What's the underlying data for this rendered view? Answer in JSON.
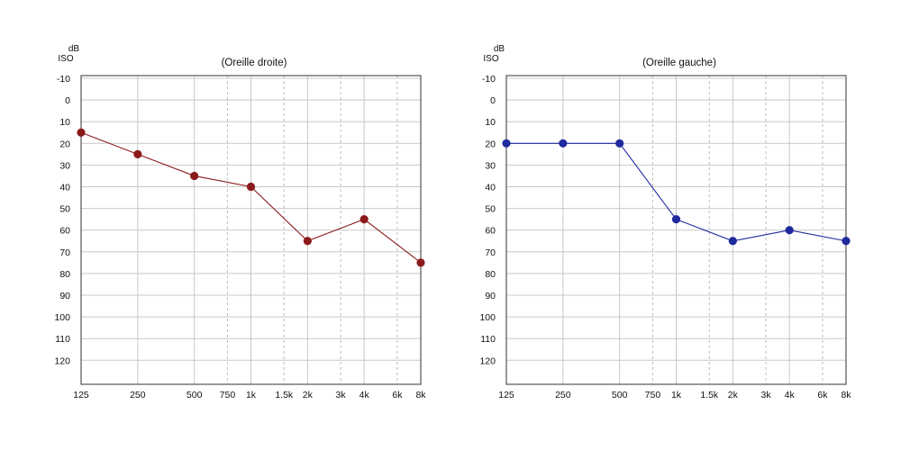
{
  "colors": {
    "right": "#8b1a1a",
    "left": "#1f2a9e",
    "grid_major": "#c8c8c8",
    "grid_minor": "#bdbdbd",
    "frame": "#555555"
  },
  "chart_data": [
    {
      "type": "line",
      "unit": [
        "dB",
        "ISO"
      ],
      "title": "(Oreille droite)",
      "x_tick_labels": [
        "125",
        "250",
        "500",
        "750",
        "1k",
        "1.5k",
        "2k",
        "3k",
        "4k",
        "6k",
        "8k"
      ],
      "y_tick_labels": [
        "-10",
        "0",
        "10",
        "20",
        "30",
        "40",
        "50",
        "60",
        "70",
        "80",
        "90",
        "100",
        "110",
        "120"
      ],
      "ylim": [
        -10,
        120
      ],
      "y_inverted": true,
      "x_scale": "octave (log)",
      "minor_gridlines_dashed": [
        "750",
        "1.5k",
        "3k",
        "6k"
      ],
      "series": [
        {
          "color": "#8b1a1a",
          "x": [
            "125",
            "250",
            "500",
            "1k",
            "2k",
            "4k",
            "8k"
          ],
          "values": [
            15,
            25,
            35,
            40,
            65,
            55,
            75
          ]
        }
      ]
    },
    {
      "type": "line",
      "unit": [
        "dB",
        "ISO"
      ],
      "title": "(Oreille gauche)",
      "x_tick_labels": [
        "125",
        "250",
        "500",
        "750",
        "1k",
        "1.5k",
        "2k",
        "3k",
        "4k",
        "6k",
        "8k"
      ],
      "y_tick_labels": [
        "-10",
        "0",
        "10",
        "20",
        "30",
        "40",
        "50",
        "60",
        "70",
        "80",
        "90",
        "100",
        "110",
        "120"
      ],
      "ylim": [
        -10,
        120
      ],
      "y_inverted": true,
      "x_scale": "octave (log)",
      "minor_gridlines_dashed": [
        "750",
        "1.5k",
        "3k",
        "6k"
      ],
      "series": [
        {
          "color": "#1f2a9e",
          "x": [
            "125",
            "250",
            "500",
            "1k",
            "2k",
            "4k",
            "8k"
          ],
          "values": [
            20,
            20,
            20,
            55,
            65,
            60,
            65
          ]
        }
      ]
    }
  ]
}
